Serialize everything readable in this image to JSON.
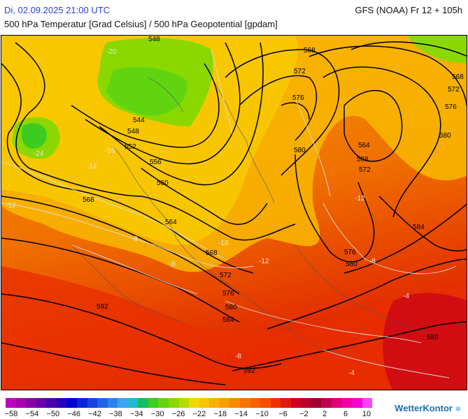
{
  "header": {
    "datetime": "Di, 02.09.2025 21:00 UTC",
    "model": "GFS (NOAA) Fr 12 + 105h",
    "title": "500 hPa Temperatur [Grad Celsius] / 500 hPa Geopotential [gpdam]"
  },
  "map": {
    "geopotential_labels": [
      "548",
      "544",
      "548",
      "552",
      "556",
      "560",
      "568",
      "564",
      "568",
      "572",
      "576",
      "580",
      "584",
      "592",
      "568",
      "572",
      "576",
      "580",
      "564",
      "568",
      "572",
      "576",
      "580",
      "568",
      "572",
      "576",
      "580",
      "584",
      "588",
      "592"
    ],
    "temperature_labels": [
      "-20",
      "-24",
      "-16",
      "-12",
      "-12",
      "-8",
      "-8",
      "-16",
      "-12",
      "-12",
      "-8",
      "-4",
      "-8",
      "-4"
    ]
  },
  "legend": {
    "colors": [
      "#c000c0",
      "#a600b0",
      "#8a00a8",
      "#6a00a8",
      "#4a00b0",
      "#2a00c0",
      "#0000d0",
      "#0a24d8",
      "#1446e0",
      "#1e64e8",
      "#2a84ee",
      "#3aa4f2",
      "#20b8d0",
      "#10c060",
      "#3ccc20",
      "#60d410",
      "#8ad800",
      "#b4dc00",
      "#f0d800",
      "#f8c400",
      "#f8b000",
      "#f89c00",
      "#f88800",
      "#f87400",
      "#f86000",
      "#f84c00",
      "#f03000",
      "#e01810",
      "#d00020",
      "#b80028",
      "#a00030",
      "#c00050",
      "#e00078",
      "#f000a8",
      "#f800d0",
      "#ff40ff"
    ],
    "labels": [
      "−58",
      "−54",
      "−50",
      "−46",
      "−42",
      "−38",
      "−34",
      "−30",
      "−26",
      "−22",
      "−18",
      "−14",
      "−10",
      "−6",
      "−2",
      "2",
      "6",
      "10"
    ]
  },
  "brand": {
    "name": "WetterKontor"
  }
}
